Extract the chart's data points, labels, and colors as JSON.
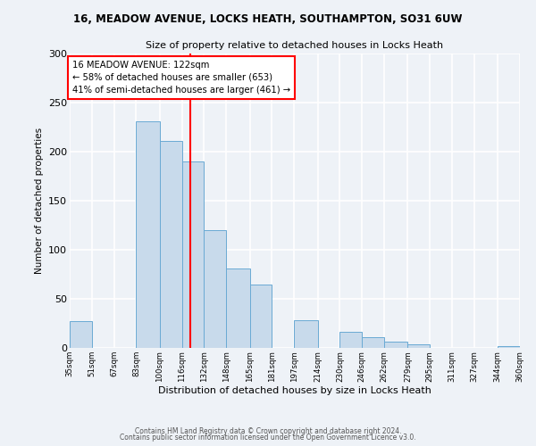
{
  "title": "16, MEADOW AVENUE, LOCKS HEATH, SOUTHAMPTON, SO31 6UW",
  "subtitle": "Size of property relative to detached houses in Locks Heath",
  "xlabel": "Distribution of detached houses by size in Locks Heath",
  "ylabel": "Number of detached properties",
  "bar_color": "#c8daeb",
  "bar_edge_color": "#6aaad4",
  "vline_x": 122,
  "vline_color": "red",
  "annotation_title": "16 MEADOW AVENUE: 122sqm",
  "annotation_line1": "← 58% of detached houses are smaller (653)",
  "annotation_line2": "41% of semi-detached houses are larger (461) →",
  "annotation_box_color": "white",
  "annotation_box_edge": "red",
  "bins": [
    35,
    51,
    67,
    83,
    100,
    116,
    132,
    148,
    165,
    181,
    197,
    214,
    230,
    246,
    262,
    279,
    295,
    311,
    327,
    344,
    360
  ],
  "counts": [
    27,
    0,
    0,
    231,
    211,
    190,
    120,
    81,
    65,
    0,
    28,
    0,
    16,
    11,
    6,
    4,
    0,
    0,
    0,
    2
  ],
  "tick_labels": [
    "35sqm",
    "51sqm",
    "67sqm",
    "83sqm",
    "100sqm",
    "116sqm",
    "132sqm",
    "148sqm",
    "165sqm",
    "181sqm",
    "197sqm",
    "214sqm",
    "230sqm",
    "246sqm",
    "262sqm",
    "279sqm",
    "295sqm",
    "311sqm",
    "327sqm",
    "344sqm",
    "360sqm"
  ],
  "ylim": [
    0,
    300
  ],
  "yticks": [
    0,
    50,
    100,
    150,
    200,
    250,
    300
  ],
  "footer1": "Contains HM Land Registry data © Crown copyright and database right 2024.",
  "footer2": "Contains public sector information licensed under the Open Government Licence v3.0.",
  "background_color": "#eef2f7"
}
